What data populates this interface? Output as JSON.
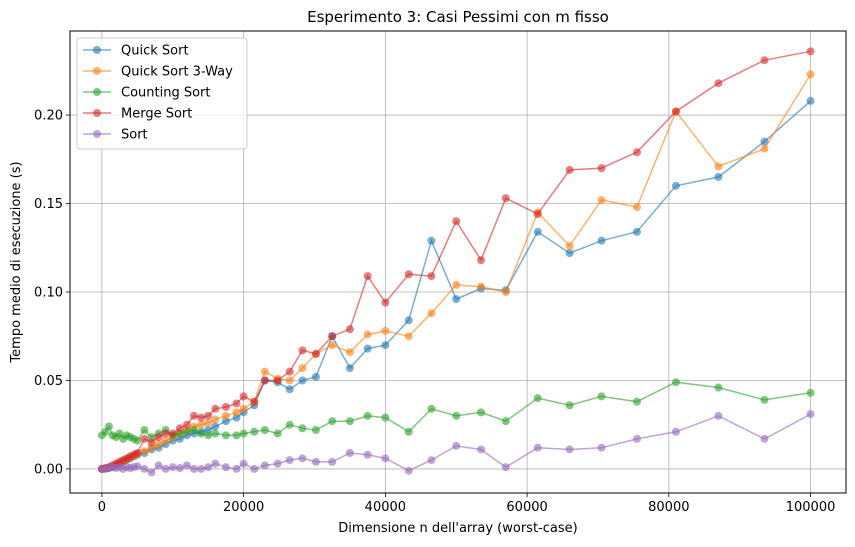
{
  "chart_data": {
    "type": "line",
    "title": "Esperimento 3: Casi Pessimi con m fisso",
    "xlabel": "Dimensione n dell'array (worst-case)",
    "ylabel": "Tempo medio di esecuzione (s)",
    "xlim": [
      -4500,
      105000
    ],
    "ylim": [
      -0.0136,
      0.2475
    ],
    "xticks": [
      0,
      20000,
      40000,
      60000,
      80000,
      100000
    ],
    "xtick_labels": [
      "0",
      "20000",
      "40000",
      "60000",
      "80000",
      "100000"
    ],
    "yticks": [
      0.0,
      0.05,
      0.1,
      0.15,
      0.2
    ],
    "ytick_labels": [
      "0.00",
      "0.05",
      "0.10",
      "0.15",
      "0.20"
    ],
    "grid": true,
    "legend_position": "top-left",
    "x": [
      0,
      500,
      1000,
      1500,
      2000,
      2500,
      3000,
      3500,
      4000,
      4500,
      5000,
      6000,
      7000,
      8000,
      9000,
      10000,
      11000,
      12000,
      13000,
      14000,
      15000,
      16000,
      17500,
      19000,
      20000,
      21500,
      23000,
      24800,
      26500,
      28300,
      30200,
      32500,
      35000,
      37500,
      40000,
      43300,
      46500,
      50000,
      53500,
      57000,
      61500,
      66000,
      70500,
      75500,
      81000,
      87000,
      93500,
      100000
    ],
    "series": [
      {
        "name": "Quick Sort",
        "color": "#1f77b4",
        "values": [
          0.0,
          0.0002,
          0.0005,
          0.001,
          0.002,
          0.003,
          0.004,
          0.005,
          0.006,
          0.007,
          0.008,
          0.009,
          0.011,
          0.012,
          0.014,
          0.016,
          0.017,
          0.019,
          0.02,
          0.021,
          0.022,
          0.024,
          0.027,
          0.029,
          0.032,
          0.036,
          0.05,
          0.049,
          0.045,
          0.05,
          0.052,
          0.075,
          0.057,
          0.068,
          0.07,
          0.084,
          0.129,
          0.096,
          0.102,
          0.101,
          0.134,
          0.122,
          0.129,
          0.134,
          0.16,
          0.165,
          0.185,
          0.208
        ]
      },
      {
        "name": "Quick Sort 3-Way",
        "color": "#ff7f0e",
        "values": [
          0.0,
          0.0003,
          0.0008,
          0.0015,
          0.0025,
          0.0035,
          0.0045,
          0.0055,
          0.0065,
          0.0075,
          0.0085,
          0.01,
          0.012,
          0.014,
          0.016,
          0.018,
          0.02,
          0.022,
          0.024,
          0.025,
          0.026,
          0.028,
          0.03,
          0.032,
          0.034,
          0.038,
          0.055,
          0.051,
          0.05,
          0.057,
          0.065,
          0.07,
          0.066,
          0.076,
          0.078,
          0.075,
          0.088,
          0.104,
          0.103,
          0.1,
          0.145,
          0.126,
          0.152,
          0.148,
          0.202,
          0.171,
          0.181,
          0.223
        ]
      },
      {
        "name": "Counting Sort",
        "color": "#2ca02c",
        "values": [
          0.019,
          0.021,
          0.024,
          0.019,
          0.018,
          0.02,
          0.017,
          0.019,
          0.018,
          0.017,
          0.016,
          0.022,
          0.018,
          0.02,
          0.022,
          0.019,
          0.02,
          0.021,
          0.022,
          0.02,
          0.019,
          0.02,
          0.019,
          0.019,
          0.02,
          0.021,
          0.022,
          0.02,
          0.025,
          0.023,
          0.022,
          0.027,
          0.027,
          0.03,
          0.029,
          0.021,
          0.034,
          0.03,
          0.032,
          0.027,
          0.04,
          0.036,
          0.041,
          0.038,
          0.049,
          0.046,
          0.039,
          0.043
        ]
      },
      {
        "name": "Merge Sort",
        "color": "#d62728",
        "values": [
          0.0,
          0.0005,
          0.001,
          0.002,
          0.003,
          0.004,
          0.005,
          0.006,
          0.007,
          0.008,
          0.009,
          0.017,
          0.015,
          0.018,
          0.02,
          0.02,
          0.023,
          0.025,
          0.03,
          0.029,
          0.03,
          0.034,
          0.035,
          0.037,
          0.041,
          0.038,
          0.05,
          0.05,
          0.055,
          0.067,
          0.065,
          0.075,
          0.079,
          0.109,
          0.094,
          0.11,
          0.109,
          0.14,
          0.118,
          0.153,
          0.144,
          0.169,
          0.17,
          0.179,
          0.202,
          0.218,
          0.231,
          0.236
        ]
      },
      {
        "name": "Sort",
        "color": "#9467bd",
        "values": [
          0.0,
          0.0,
          0.0005,
          0.001,
          0.0005,
          0.001,
          0.0,
          0.001,
          0.0005,
          0.001,
          0.0015,
          0.0,
          -0.002,
          0.002,
          0.0,
          0.001,
          0.0005,
          0.002,
          0.0,
          0.0,
          0.001,
          0.003,
          0.001,
          0.0,
          0.003,
          0.0,
          0.002,
          0.003,
          0.005,
          0.006,
          0.004,
          0.004,
          0.009,
          0.008,
          0.006,
          -0.001,
          0.005,
          0.013,
          0.011,
          0.001,
          0.012,
          0.011,
          0.012,
          0.017,
          0.021,
          0.03,
          0.017,
          0.031
        ]
      }
    ]
  }
}
